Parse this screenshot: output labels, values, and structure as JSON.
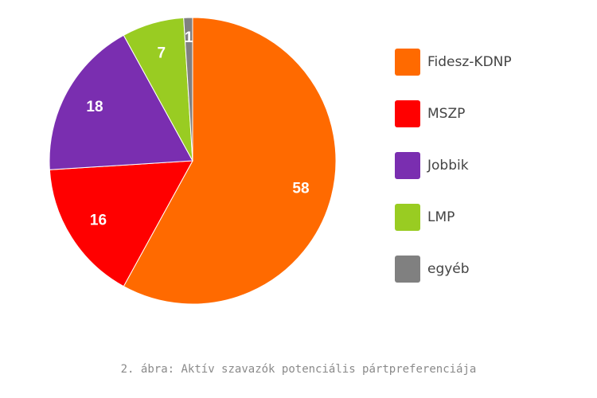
{
  "chart_data": {
    "type": "pie",
    "slices": [
      {
        "label": "Fidesz-KDNP",
        "value": 58,
        "color": "#ff6a00"
      },
      {
        "label": "MSZP",
        "value": 16,
        "color": "#ff0000"
      },
      {
        "label": "Jobbik",
        "value": 18,
        "color": "#7a2eb0"
      },
      {
        "label": "LMP",
        "value": 7,
        "color": "#99cc22"
      },
      {
        "label": "egyéb",
        "value": 1,
        "color": "#808080"
      }
    ],
    "legend_position": "right",
    "caption": "2. ábra: Aktív szavazók potenciális pártpreferenciája"
  }
}
